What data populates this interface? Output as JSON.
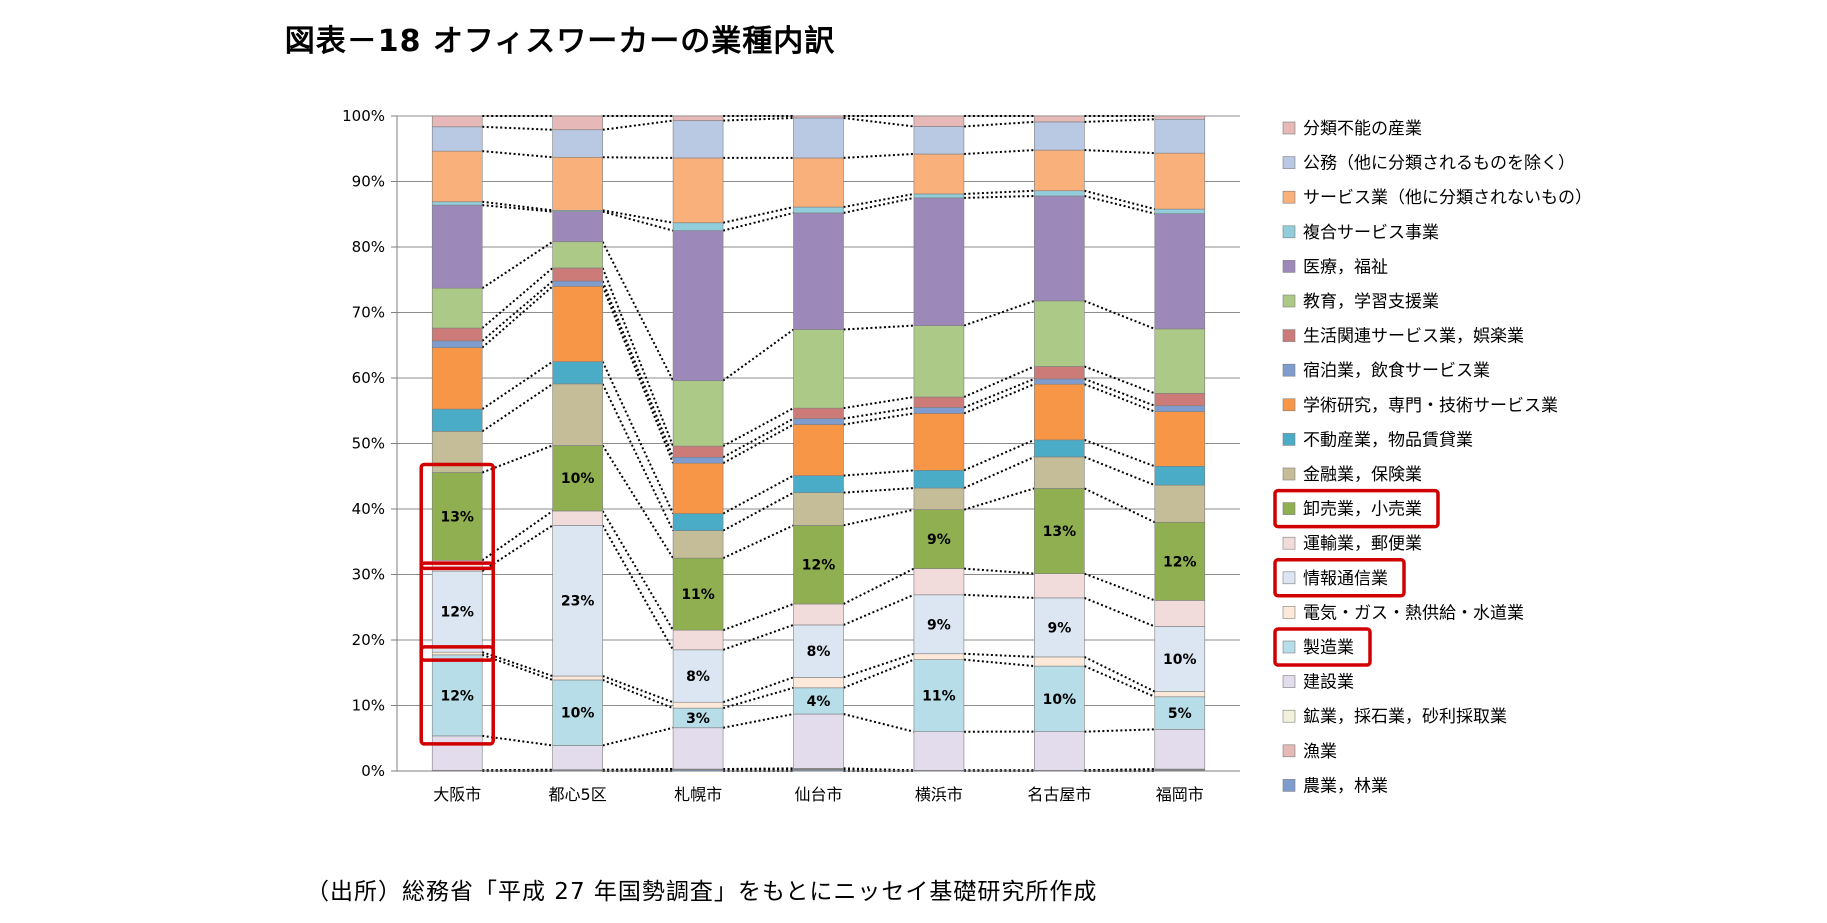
{
  "title": "図表－18 オフィスワーカーの業種内訳",
  "source": "（出所）総務省「平成 27 年国勢調査」をもとにニッセイ基礎研究所作成",
  "chart_data": {
    "type": "bar",
    "stacked": true,
    "percent_stacked": true,
    "ylim": [
      0,
      100
    ],
    "yticks": [
      "0%",
      "10%",
      "20%",
      "30%",
      "40%",
      "50%",
      "60%",
      "70%",
      "80%",
      "90%",
      "100%"
    ],
    "grid": true,
    "legend_position": "right",
    "connector_lines": "dotted lines connect series boundaries between adjacent bars",
    "highlighted_series": [
      "卸売業，小売業",
      "情報通信業",
      "製造業"
    ],
    "highlighted_bar": "大阪市",
    "categories": [
      "大阪市",
      "都心5区",
      "札幌市",
      "仙台市",
      "横浜市",
      "名古屋市",
      "福岡市"
    ],
    "series": [
      {
        "name": "農業，林業",
        "color": "#7f9ccf",
        "values": [
          0.1,
          0.1,
          0.2,
          0.2,
          0.1,
          0.1,
          0.1
        ]
      },
      {
        "name": "漁業",
        "color": "#e6b8b7",
        "values": [
          0.0,
          0.0,
          0.1,
          0.1,
          0.0,
          0.0,
          0.1
        ]
      },
      {
        "name": "鉱業，採石業，砂利採取業",
        "color": "#f2f2dc",
        "values": [
          0.0,
          0.1,
          0.0,
          0.1,
          0.0,
          0.0,
          0.1
        ]
      },
      {
        "name": "建設業",
        "color": "#e2dcec",
        "values": [
          5.1,
          3.7,
          6.3,
          8.3,
          5.9,
          5.9,
          6.1
        ]
      },
      {
        "name": "製造業",
        "color": "#b7dde8",
        "values": [
          12,
          10,
          3,
          4,
          11,
          10,
          5
        ]
      },
      {
        "name": "電気・ガス・熱供給・水道業",
        "color": "#fde9d9",
        "values": [
          0.4,
          0.6,
          0.9,
          1.6,
          0.9,
          1.4,
          0.8
        ]
      },
      {
        "name": "情報通信業",
        "color": "#dce6f2",
        "values": [
          12,
          23,
          8,
          8,
          9,
          9,
          10
        ]
      },
      {
        "name": "運輸業，郵便業",
        "color": "#f2dcdb",
        "values": [
          1.6,
          2.2,
          3.0,
          3.2,
          4.0,
          3.7,
          4.0
        ]
      },
      {
        "name": "卸売業，小売業",
        "color": "#8faf50",
        "values": [
          13,
          10,
          11,
          12,
          9,
          13,
          12
        ]
      },
      {
        "name": "金融業，保険業",
        "color": "#c4bd97",
        "values": [
          6.1,
          9.4,
          4.2,
          5.0,
          3.3,
          4.8,
          5.7
        ]
      },
      {
        "name": "不動産業，物品賃貸業",
        "color": "#4aacc6",
        "values": [
          3.3,
          3.4,
          2.6,
          2.6,
          2.7,
          2.6,
          2.9
        ]
      },
      {
        "name": "学術研究，専門・技術サービス業",
        "color": "#f79646",
        "values": [
          9.1,
          11.5,
          7.7,
          7.8,
          8.7,
          8.5,
          8.4
        ]
      },
      {
        "name": "宿泊業，飲食サービス業",
        "color": "#7f9ccf",
        "values": [
          1.0,
          0.8,
          0.9,
          0.9,
          0.9,
          0.8,
          0.9
        ]
      },
      {
        "name": "生活関連サービス業，娯楽業",
        "color": "#cd7b79",
        "values": [
          1.9,
          2.0,
          1.7,
          1.6,
          1.6,
          1.9,
          1.9
        ]
      },
      {
        "name": "教育，学習支援業",
        "color": "#adc987",
        "values": [
          5.9,
          4.0,
          10.0,
          12.0,
          10.9,
          10.0,
          9.9
        ]
      },
      {
        "name": "医療，福祉",
        "color": "#9c89b9",
        "values": [
          12.3,
          4.6,
          22.9,
          17.8,
          19.5,
          16.0,
          17.7
        ]
      },
      {
        "name": "複合サービス事業",
        "color": "#92cddc",
        "values": [
          0.5,
          0.2,
          1.2,
          0.9,
          0.6,
          0.8,
          0.7
        ]
      },
      {
        "name": "サービス業（他に分類されないもの）",
        "color": "#fab07a",
        "values": [
          7.5,
          8.1,
          9.9,
          7.5,
          6.1,
          6.2,
          8.6
        ]
      },
      {
        "name": "公務（他に分類されるものを除く）",
        "color": "#b9c9e3",
        "values": [
          3.6,
          4.2,
          5.7,
          6.1,
          4.2,
          4.3,
          5.2
        ]
      },
      {
        "name": "分類不能の産業",
        "color": "#e6b8b7",
        "values": [
          1.6,
          2.1,
          0.7,
          0.3,
          1.6,
          0.9,
          0.5
        ]
      }
    ],
    "data_labels": [
      {
        "category": "大阪市",
        "series": "製造業",
        "text": "12%"
      },
      {
        "category": "大阪市",
        "series": "情報通信業",
        "text": "12%"
      },
      {
        "category": "大阪市",
        "series": "卸売業，小売業",
        "text": "13%"
      },
      {
        "category": "都心5区",
        "series": "製造業",
        "text": "10%"
      },
      {
        "category": "都心5区",
        "series": "情報通信業",
        "text": "23%"
      },
      {
        "category": "都心5区",
        "series": "卸売業，小売業",
        "text": "10%"
      },
      {
        "category": "札幌市",
        "series": "製造業",
        "text": "3%"
      },
      {
        "category": "札幌市",
        "series": "情報通信業",
        "text": "8%"
      },
      {
        "category": "札幌市",
        "series": "卸売業，小売業",
        "text": "11%"
      },
      {
        "category": "仙台市",
        "series": "製造業",
        "text": "4%"
      },
      {
        "category": "仙台市",
        "series": "情報通信業",
        "text": "8%"
      },
      {
        "category": "仙台市",
        "series": "卸売業，小売業",
        "text": "12%"
      },
      {
        "category": "横浜市",
        "series": "製造業",
        "text": "11%"
      },
      {
        "category": "横浜市",
        "series": "情報通信業",
        "text": "9%"
      },
      {
        "category": "横浜市",
        "series": "卸売業，小売業",
        "text": "9%"
      },
      {
        "category": "名古屋市",
        "series": "製造業",
        "text": "10%"
      },
      {
        "category": "名古屋市",
        "series": "情報通信業",
        "text": "9%"
      },
      {
        "category": "名古屋市",
        "series": "卸売業，小売業",
        "text": "13%"
      },
      {
        "category": "福岡市",
        "series": "製造業",
        "text": "5%"
      },
      {
        "category": "福岡市",
        "series": "情報通信業",
        "text": "10%"
      },
      {
        "category": "福岡市",
        "series": "卸売業，小売業",
        "text": "12%"
      }
    ],
    "highlight_color": "#d00000"
  }
}
